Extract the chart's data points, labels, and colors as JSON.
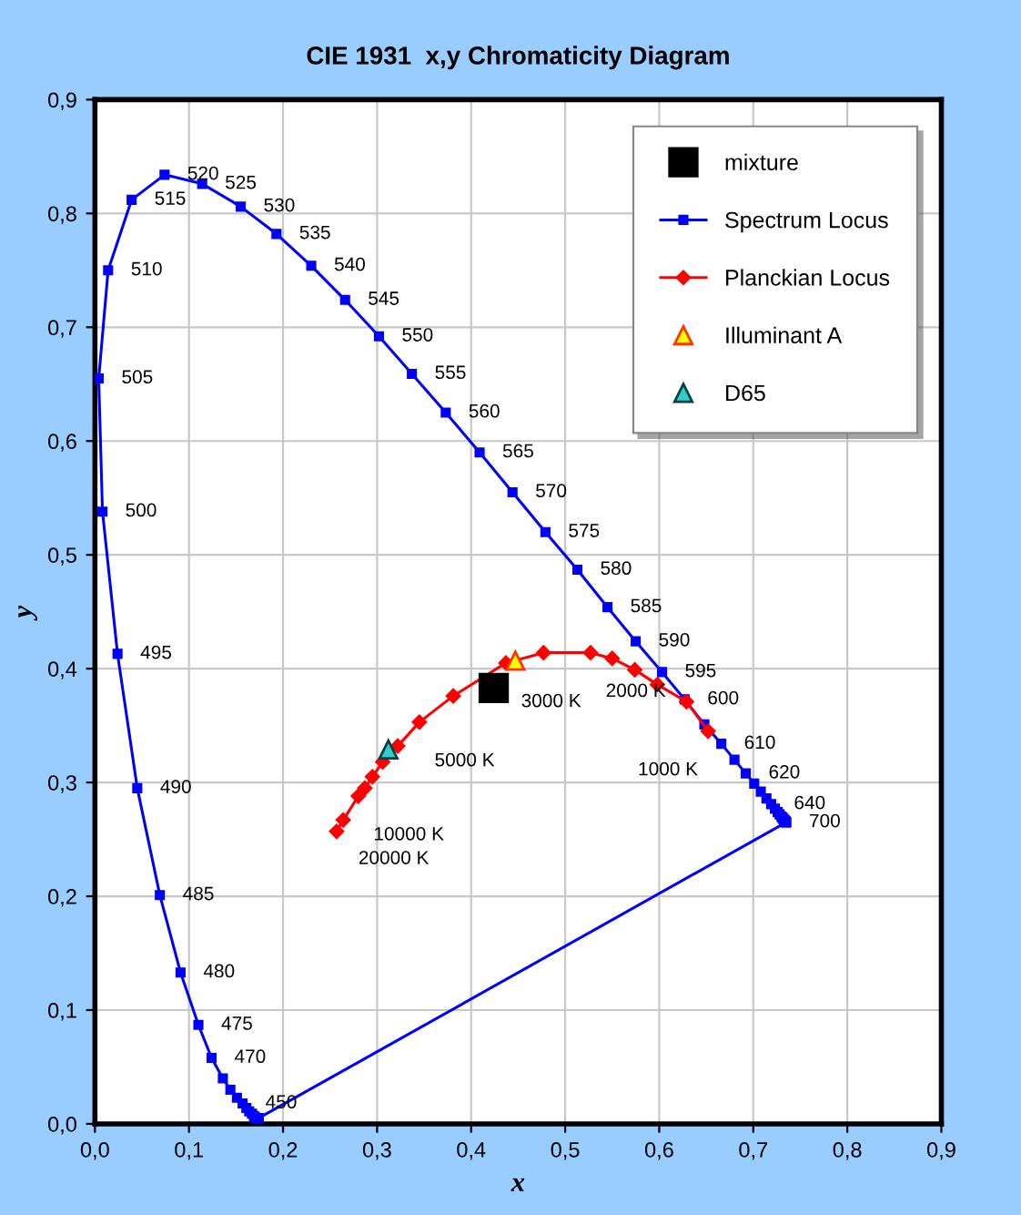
{
  "chart_data": {
    "type": "line",
    "title": "CIE 1931  x,y Chromaticity Diagram",
    "xlabel": "x",
    "ylabel": "y",
    "xlim": [
      0,
      0.9
    ],
    "ylim": [
      0,
      0.9
    ],
    "xticks": [
      {
        "value": 0,
        "label": "0,0"
      },
      {
        "value": 0.1,
        "label": "0,1"
      },
      {
        "value": 0.2,
        "label": "0,2"
      },
      {
        "value": 0.3,
        "label": "0,3"
      },
      {
        "value": 0.4,
        "label": "0,4"
      },
      {
        "value": 0.5,
        "label": "0,5"
      },
      {
        "value": 0.6,
        "label": "0,6"
      },
      {
        "value": 0.7,
        "label": "0,7"
      },
      {
        "value": 0.8,
        "label": "0,8"
      },
      {
        "value": 0.9,
        "label": "0,9"
      }
    ],
    "yticks": [
      {
        "value": 0,
        "label": "0,0"
      },
      {
        "value": 0.1,
        "label": "0,1"
      },
      {
        "value": 0.2,
        "label": "0,2"
      },
      {
        "value": 0.3,
        "label": "0,3"
      },
      {
        "value": 0.4,
        "label": "0,4"
      },
      {
        "value": 0.5,
        "label": "0,5"
      },
      {
        "value": 0.6,
        "label": "0,6"
      },
      {
        "value": 0.7,
        "label": "0,7"
      },
      {
        "value": 0.8,
        "label": "0,8"
      },
      {
        "value": 0.9,
        "label": "0,9"
      }
    ],
    "grid": true,
    "legend": "top right",
    "series": [
      {
        "name": "mixture",
        "type": "scatter",
        "marker": "square",
        "color": "#000000",
        "x": [
          0.424
        ],
        "values": [
          0.383
        ]
      },
      {
        "name": "Spectrum Locus",
        "marker": "square",
        "line_style": "solid",
        "color": "#0000ff",
        "x": [
          0.174,
          0.174,
          0.174,
          0.174,
          0.173,
          0.173,
          0.173,
          0.172,
          0.171,
          0.17,
          0.169,
          0.167,
          0.164,
          0.161,
          0.157,
          0.151,
          0.144,
          0.136,
          0.124,
          0.11,
          0.091,
          0.069,
          0.045,
          0.024,
          0.008,
          0.004,
          0.014,
          0.039,
          0.074,
          0.114,
          0.155,
          0.193,
          0.23,
          0.266,
          0.302,
          0.337,
          0.373,
          0.409,
          0.444,
          0.479,
          0.513,
          0.545,
          0.575,
          0.603,
          0.627,
          0.648,
          0.666,
          0.68,
          0.692,
          0.701,
          0.708,
          0.714,
          0.719,
          0.723,
          0.726,
          0.728,
          0.73,
          0.731,
          0.732,
          0.733,
          0.733,
          0.734,
          0.734,
          0.735,
          0.735
        ],
        "values": [
          0.005,
          0.005,
          0.005,
          0.005,
          0.005,
          0.005,
          0.005,
          0.005,
          0.005,
          0.006,
          0.007,
          0.009,
          0.011,
          0.014,
          0.018,
          0.023,
          0.03,
          0.04,
          0.058,
          0.087,
          0.133,
          0.201,
          0.295,
          0.413,
          0.538,
          0.655,
          0.75,
          0.812,
          0.834,
          0.826,
          0.806,
          0.782,
          0.754,
          0.724,
          0.692,
          0.659,
          0.625,
          0.59,
          0.555,
          0.52,
          0.487,
          0.454,
          0.424,
          0.397,
          0.373,
          0.351,
          0.334,
          0.32,
          0.308,
          0.299,
          0.292,
          0.286,
          0.281,
          0.277,
          0.274,
          0.272,
          0.27,
          0.269,
          0.268,
          0.267,
          0.267,
          0.266,
          0.266,
          0.265,
          0.265
        ]
      },
      {
        "name": "Planckian Locus",
        "marker": "diamond",
        "line_style": "solid",
        "color": "#ff0000",
        "x": [
          0.652,
          0.629,
          0.598,
          0.574,
          0.55,
          0.527,
          0.477,
          0.437,
          0.381,
          0.345,
          0.322,
          0.306,
          0.295,
          0.287,
          0.28,
          0.264,
          0.257
        ],
        "values": [
          0.345,
          0.371,
          0.386,
          0.399,
          0.409,
          0.414,
          0.414,
          0.405,
          0.376,
          0.353,
          0.332,
          0.318,
          0.305,
          0.295,
          0.288,
          0.267,
          0.257
        ]
      },
      {
        "name": "Illuminant A",
        "type": "scatter",
        "marker": "triangle",
        "color": "#ffff00",
        "x": [
          0.447
        ],
        "values": [
          0.407
        ]
      },
      {
        "name": "D65",
        "type": "scatter",
        "marker": "triangle",
        "color": "#33cccc",
        "x": [
          0.312
        ],
        "values": [
          0.329
        ]
      }
    ],
    "annotations": [
      {
        "text": "520",
        "x": 0.074,
        "y": 0.834
      },
      {
        "text": "525",
        "x": 0.114,
        "y": 0.826
      },
      {
        "text": "530",
        "x": 0.155,
        "y": 0.806
      },
      {
        "text": "535",
        "x": 0.193,
        "y": 0.782
      },
      {
        "text": "540",
        "x": 0.23,
        "y": 0.754
      },
      {
        "text": "545",
        "x": 0.266,
        "y": 0.724
      },
      {
        "text": "550",
        "x": 0.302,
        "y": 0.692
      },
      {
        "text": "555",
        "x": 0.337,
        "y": 0.659
      },
      {
        "text": "560",
        "x": 0.373,
        "y": 0.625
      },
      {
        "text": "565",
        "x": 0.409,
        "y": 0.59
      },
      {
        "text": "570",
        "x": 0.444,
        "y": 0.555
      },
      {
        "text": "575",
        "x": 0.479,
        "y": 0.52
      },
      {
        "text": "580",
        "x": 0.513,
        "y": 0.487
      },
      {
        "text": "585",
        "x": 0.545,
        "y": 0.454
      },
      {
        "text": "590",
        "x": 0.575,
        "y": 0.424
      },
      {
        "text": "595",
        "x": 0.603,
        "y": 0.397
      },
      {
        "text": "600",
        "x": 0.627,
        "y": 0.373
      },
      {
        "text": "610",
        "x": 0.666,
        "y": 0.334
      },
      {
        "text": "620",
        "x": 0.692,
        "y": 0.308
      },
      {
        "text": "640",
        "x": 0.719,
        "y": 0.281
      },
      {
        "text": "700",
        "x": 0.735,
        "y": 0.265
      },
      {
        "text": "515",
        "x": 0.039,
        "y": 0.812
      },
      {
        "text": "510",
        "x": 0.014,
        "y": 0.75
      },
      {
        "text": "505",
        "x": 0.004,
        "y": 0.655
      },
      {
        "text": "500",
        "x": 0.008,
        "y": 0.538
      },
      {
        "text": "495",
        "x": 0.024,
        "y": 0.413
      },
      {
        "text": "490",
        "x": 0.045,
        "y": 0.295
      },
      {
        "text": "485",
        "x": 0.069,
        "y": 0.201
      },
      {
        "text": "480",
        "x": 0.091,
        "y": 0.133
      },
      {
        "text": "475",
        "x": 0.11,
        "y": 0.087
      },
      {
        "text": "470",
        "x": 0.124,
        "y": 0.058
      },
      {
        "text": "450",
        "x": 0.157,
        "y": 0.018
      },
      {
        "text": "3000 K",
        "x": 0.437,
        "y": 0.405
      },
      {
        "text": "2000 K",
        "x": 0.527,
        "y": 0.414
      },
      {
        "text": "5000 K",
        "x": 0.345,
        "y": 0.353
      },
      {
        "text": "10000 K",
        "x": 0.28,
        "y": 0.288
      },
      {
        "text": "20000 K",
        "x": 0.264,
        "y": 0.267
      },
      {
        "text": "1000 K",
        "x": 0.652,
        "y": 0.345
      }
    ]
  }
}
